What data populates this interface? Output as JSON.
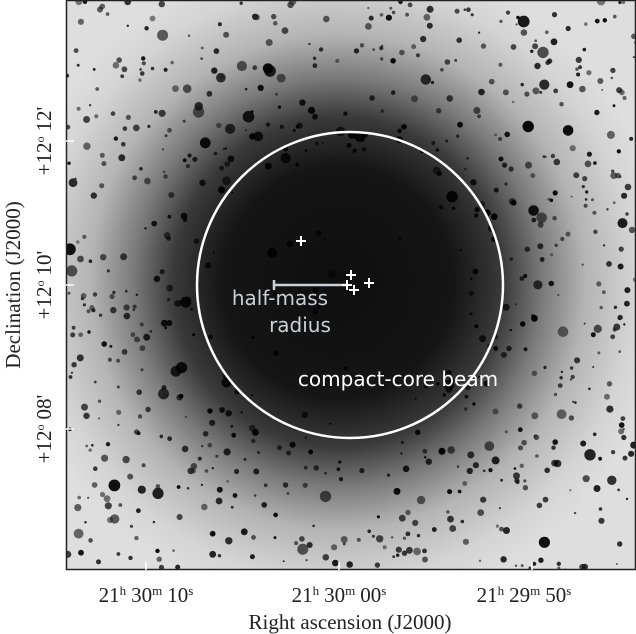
{
  "axes": {
    "xlabel": "Right ascension (J2000)",
    "ylabel": "Declination (J2000)",
    "x_ticks": [
      {
        "h": "21",
        "m": "30",
        "s": "10"
      },
      {
        "h": "21",
        "m": "30",
        "s": "00"
      },
      {
        "h": "21",
        "m": "29",
        "s": "50"
      }
    ],
    "y_ticks": [
      {
        "deg": "+12",
        "min": "12"
      },
      {
        "deg": "+12",
        "min": "10"
      },
      {
        "deg": "+12",
        "min": "08"
      }
    ],
    "units": {
      "h": "h",
      "m": "m",
      "s": "s",
      "deg": "o",
      "arcmin": "'"
    }
  },
  "annotations": {
    "half_mass": [
      "half-mass",
      "radius"
    ],
    "beam": "compact-core beam"
  },
  "colors": {
    "background": "#ffffff",
    "frame": "#222222",
    "annotation_text": "#c9d0d6",
    "circle": "#ffffff",
    "markers": "#ffffff"
  },
  "markers_count_visible": 5
}
